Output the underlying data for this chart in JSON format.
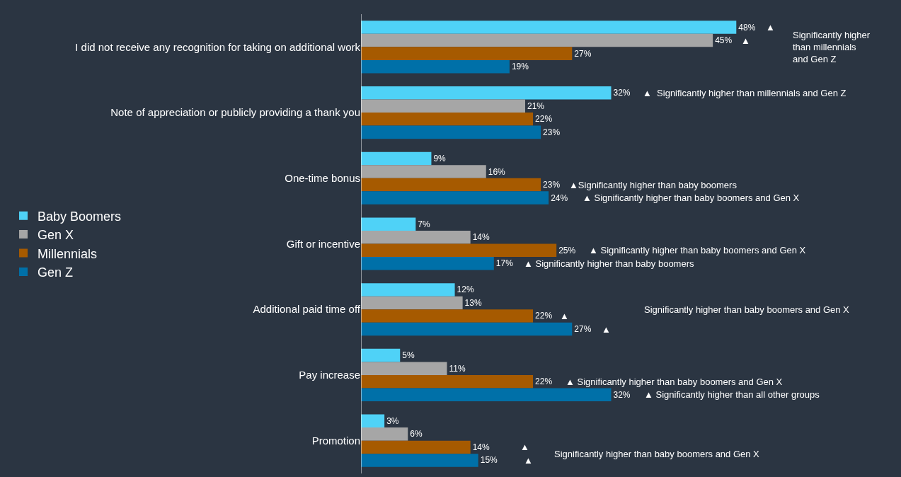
{
  "chart_data": {
    "type": "bar",
    "orientation": "horizontal",
    "legend": "left",
    "data_labels": true,
    "grid": false,
    "categories": [
      "I did not receive any recognition for taking on additional work",
      "Note of appreciation or publicly providing a thank you",
      "One-time bonus",
      "Gift or incentive",
      "Additional paid time off",
      "Pay increase",
      "Promotion"
    ],
    "series": [
      {
        "name": "Baby Boomers",
        "color": "#4fd2f7",
        "values": [
          48,
          32,
          9,
          7,
          12,
          5,
          3
        ],
        "value_labels": [
          "48%",
          "32%",
          "9%",
          "7%",
          "12%",
          "5%",
          "3%"
        ]
      },
      {
        "name": "Gen X",
        "color": "#a6a6a6",
        "values": [
          45,
          21,
          16,
          14,
          13,
          11,
          6
        ],
        "value_labels": [
          "45%",
          "21%",
          "16%",
          "14%",
          "13%",
          "11%",
          "6%"
        ]
      },
      {
        "name": "Millennials",
        "color": "#a65a00",
        "values": [
          27,
          22,
          23,
          25,
          22,
          22,
          14
        ],
        "value_labels": [
          "27%",
          "22%",
          "23%",
          "25%",
          "22%",
          "22%",
          "14%"
        ]
      },
      {
        "name": "Gen Z",
        "color": "#0070a8",
        "values": [
          19,
          23,
          24,
          17,
          27,
          32,
          15
        ],
        "value_labels": [
          "19%",
          "23%",
          "24%",
          "17%",
          "27%",
          "32%",
          "15%"
        ]
      }
    ],
    "annotations": [
      "▲",
      "▲",
      "Significantly higher\nthan millennials\nand Gen Z",
      "▲  Significantly higher than millennials and Gen Z",
      "▲Significantly higher than baby boomers",
      "▲ Significantly higher than baby boomers and Gen X",
      "▲ Significantly higher than baby boomers and Gen X",
      "▲ Significantly higher than baby boomers",
      "▲",
      "▲",
      "Significantly higher than baby boomers and Gen X",
      "▲ Significantly higher than baby boomers and Gen X",
      "▲ Significantly higher than all other groups",
      "▲",
      "▲",
      "Significantly higher than baby boomers and Gen X"
    ]
  }
}
